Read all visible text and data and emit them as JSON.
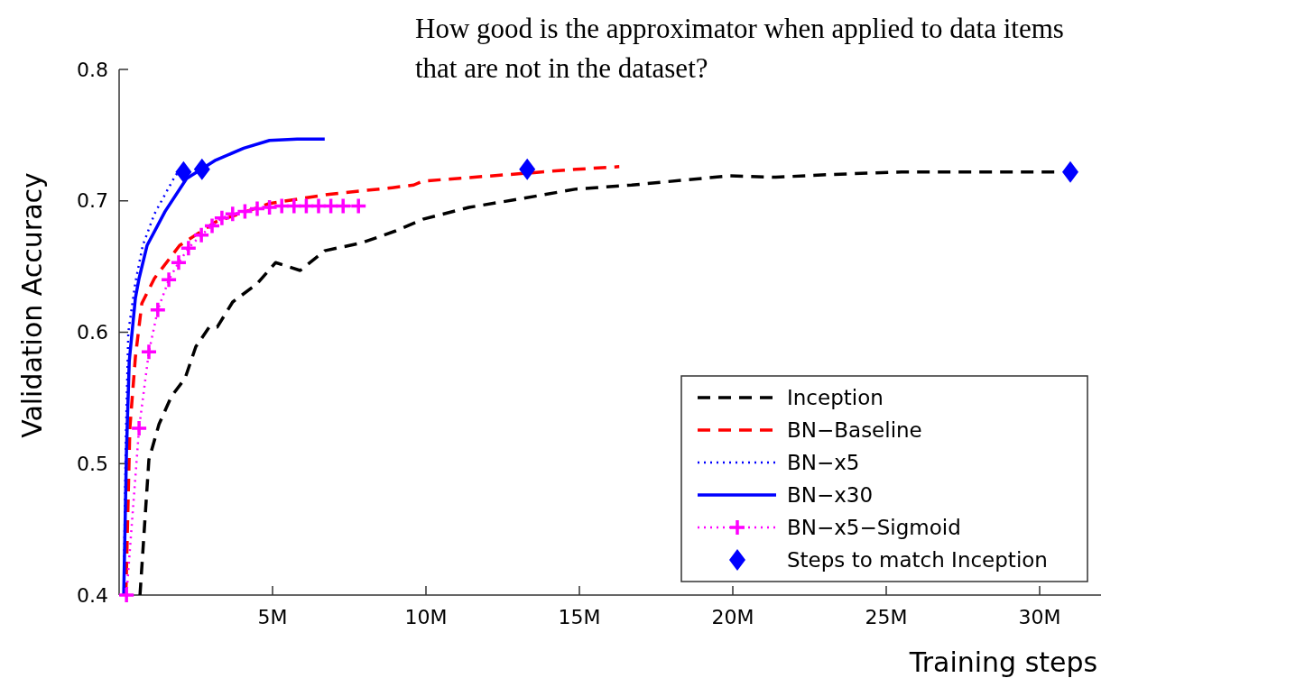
{
  "chart_data": {
    "type": "line",
    "title": "How good is the approximator when applied to data items\nthat are not in the dataset?",
    "xlabel": "Training steps",
    "ylabel": "Validation Accuracy",
    "xlim": [
      0,
      32
    ],
    "ylim": [
      0.4,
      0.8
    ],
    "xticks": [
      {
        "value": 5,
        "label": "5M"
      },
      {
        "value": 10,
        "label": "10M"
      },
      {
        "value": 15,
        "label": "15M"
      },
      {
        "value": 20,
        "label": "20M"
      },
      {
        "value": 25,
        "label": "25M"
      },
      {
        "value": 30,
        "label": "30M"
      }
    ],
    "yticks": [
      0.4,
      0.5,
      0.6,
      0.7,
      0.8
    ],
    "grid": false,
    "legend": "bottom right",
    "series": [
      {
        "name": "Inception",
        "color": "#000000",
        "line_style": "dashed",
        "marker": "none",
        "x": [
          0.68,
          0.97,
          1.3,
          1.7,
          2.15,
          2.5,
          2.94,
          3.2,
          3.7,
          4.5,
          5.1,
          5.9,
          6.7,
          7.9,
          9.0,
          9.9,
          11.4,
          13.2,
          14.9,
          16.7,
          18.5,
          19.9,
          21.4,
          23.2,
          25.5,
          27.9,
          29.9,
          30.6
        ],
        "values": [
          0.4,
          0.503,
          0.53,
          0.551,
          0.565,
          0.589,
          0.604,
          0.604,
          0.623,
          0.637,
          0.653,
          0.647,
          0.662,
          0.668,
          0.677,
          0.686,
          0.695,
          0.702,
          0.709,
          0.712,
          0.716,
          0.719,
          0.718,
          0.72,
          0.722,
          0.722,
          0.722,
          0.722
        ]
      },
      {
        "name": "BN−Baseline",
        "color": "#ff0000",
        "line_style": "dashed",
        "marker": "none",
        "x": [
          0.22,
          0.35,
          0.53,
          0.74,
          1.15,
          1.97,
          3.15,
          4.9,
          6.85,
          8.9,
          9.6,
          9.9,
          12.7,
          14.9,
          16.3
        ],
        "values": [
          0.4,
          0.527,
          0.581,
          0.622,
          0.641,
          0.666,
          0.684,
          0.698,
          0.705,
          0.71,
          0.712,
          0.715,
          0.72,
          0.724,
          0.726
        ]
      },
      {
        "name": "BN−x5",
        "color": "#0000ff",
        "line_style": "dotted",
        "marker": "none",
        "x": [
          0.15,
          0.22,
          0.3,
          0.53,
          0.77,
          1.15,
          1.85,
          2.1
        ],
        "values": [
          0.4,
          0.52,
          0.6,
          0.638,
          0.666,
          0.69,
          0.72,
          0.722
        ]
      },
      {
        "name": "BN−x30",
        "color": "#0000ff",
        "line_style": "solid",
        "marker": "none",
        "x": [
          0.15,
          0.24,
          0.33,
          0.53,
          0.65,
          0.91,
          1.5,
          2.2,
          3.15,
          4.06,
          4.9,
          5.8,
          6.7
        ],
        "values": [
          0.4,
          0.51,
          0.578,
          0.626,
          0.641,
          0.666,
          0.692,
          0.717,
          0.731,
          0.74,
          0.746,
          0.747,
          0.747
        ]
      },
      {
        "name": "BN−x5−Sigmoid",
        "color": "#ff00ff",
        "line_style": "dotted",
        "marker": "cross",
        "x": [
          0.24,
          0.65,
          0.97,
          1.26,
          1.62,
          1.94,
          2.26,
          2.68,
          3.03,
          3.35,
          3.7,
          4.1,
          4.5,
          4.9,
          5.3,
          5.7,
          6.1,
          6.5,
          6.9,
          7.3,
          7.8
        ],
        "values": [
          0.4,
          0.527,
          0.585,
          0.617,
          0.64,
          0.653,
          0.664,
          0.674,
          0.681,
          0.687,
          0.69,
          0.692,
          0.694,
          0.695,
          0.696,
          0.696,
          0.696,
          0.696,
          0.696,
          0.696,
          0.696
        ]
      },
      {
        "name": "Steps to match Inception",
        "type": "scatter",
        "color": "#0000ff",
        "marker": "diamond",
        "x": [
          2.1,
          2.7,
          13.3,
          31.0
        ],
        "values": [
          0.722,
          0.724,
          0.724,
          0.722
        ]
      }
    ]
  }
}
